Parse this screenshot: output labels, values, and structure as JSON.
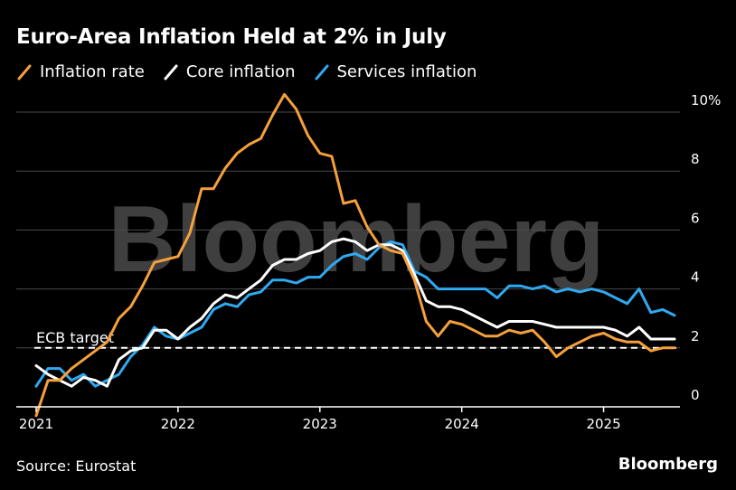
{
  "title": "Euro-Area Inflation Held at 2% in July",
  "source": "Source: Eurostat",
  "brand": "Bloomberg",
  "watermark": "Bloomberg",
  "colors": {
    "inflation": "#f5a03c",
    "core": "#ffffff",
    "services": "#2fa9f0",
    "grid": "#4a4a4a",
    "background": "#000000"
  },
  "chart_data": {
    "type": "line",
    "title": "Euro-Area Inflation Held at 2% in July",
    "ylim": [
      0,
      10
    ],
    "yticks": [
      0,
      2,
      4,
      6,
      8,
      10
    ],
    "ytick_labels": [
      "0",
      "2",
      "4",
      "6",
      "8",
      "10%"
    ],
    "xticks": [
      "2021",
      "2022",
      "2023",
      "2024",
      "2025"
    ],
    "x_start": "2021-01",
    "x_end": "2025-07",
    "grid": true,
    "legend": "top-left",
    "reference_line": {
      "value": 2,
      "label": "ECB target"
    },
    "series": [
      {
        "name": "Inflation rate",
        "color": "#f5a03c",
        "values": [
          -0.3,
          0.9,
          0.9,
          1.3,
          1.6,
          1.9,
          2.2,
          3.0,
          3.4,
          4.1,
          4.9,
          5.0,
          5.1,
          5.9,
          7.4,
          7.4,
          8.1,
          8.6,
          8.9,
          9.1,
          9.9,
          10.6,
          10.1,
          9.2,
          8.6,
          8.5,
          6.9,
          7.0,
          6.1,
          5.5,
          5.3,
          5.2,
          4.3,
          2.9,
          2.4,
          2.9,
          2.8,
          2.6,
          2.4,
          2.4,
          2.6,
          2.5,
          2.6,
          2.2,
          1.7,
          2.0,
          2.2,
          2.4,
          2.5,
          2.3,
          2.2,
          2.2,
          1.9,
          2.0,
          2.0
        ]
      },
      {
        "name": "Core inflation",
        "color": "#ffffff",
        "values": [
          1.4,
          1.1,
          0.9,
          0.7,
          1.0,
          0.9,
          0.7,
          1.6,
          1.9,
          2.0,
          2.6,
          2.6,
          2.3,
          2.7,
          3.0,
          3.5,
          3.8,
          3.7,
          4.0,
          4.3,
          4.8,
          5.0,
          5.0,
          5.2,
          5.3,
          5.6,
          5.7,
          5.6,
          5.3,
          5.5,
          5.5,
          5.3,
          4.5,
          3.6,
          3.4,
          3.4,
          3.3,
          3.1,
          2.9,
          2.7,
          2.9,
          2.9,
          2.9,
          2.8,
          2.7,
          2.7,
          2.7,
          2.7,
          2.7,
          2.6,
          2.4,
          2.7,
          2.3,
          2.3,
          2.3
        ]
      },
      {
        "name": "Services inflation",
        "color": "#2fa9f0",
        "values": [
          0.7,
          1.3,
          1.3,
          0.9,
          1.1,
          0.7,
          0.9,
          1.1,
          1.7,
          2.1,
          2.7,
          2.4,
          2.3,
          2.5,
          2.7,
          3.3,
          3.5,
          3.4,
          3.8,
          3.9,
          4.3,
          4.3,
          4.2,
          4.4,
          4.4,
          4.8,
          5.1,
          5.2,
          5.0,
          5.4,
          5.6,
          5.5,
          4.6,
          4.4,
          4.0,
          4.0,
          4.0,
          4.0,
          4.0,
          3.7,
          4.1,
          4.1,
          4.0,
          4.1,
          3.9,
          4.0,
          3.9,
          4.0,
          3.9,
          3.7,
          3.5,
          4.0,
          3.2,
          3.3,
          3.1
        ]
      }
    ]
  }
}
